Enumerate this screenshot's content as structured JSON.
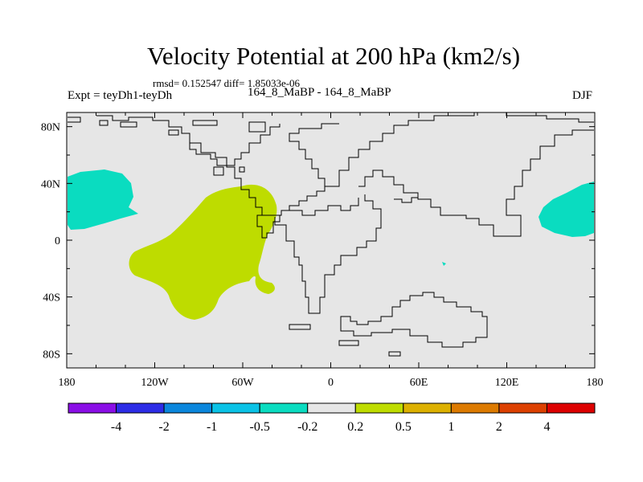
{
  "header": {
    "title": "Velocity Potential at 200 hPa (km2/s)",
    "stats": "rmsd= 0.152547 diff= 1.85033e-06",
    "expt": "Expt = teyDh1-teyDh",
    "subtitle": "164_8_MaBP - 164_8_MaBP",
    "season": "DJF"
  },
  "map": {
    "lon_labels": [
      "180",
      "120W",
      "60W",
      "0",
      "60E",
      "120E",
      "180"
    ],
    "lat_labels": [
      "80N",
      "40N",
      "0",
      "40S",
      "80S"
    ]
  },
  "colorbar": {
    "colors": [
      "#8a0ee6",
      "#2c2ce6",
      "#0a86dc",
      "#0ac2e6",
      "#0adcc0",
      "#e6e6e6",
      "#bedc00",
      "#dcb000",
      "#dc7a00",
      "#dc4000",
      "#dc0000"
    ],
    "labels": [
      "-4",
      "-2",
      "-1",
      "-0.5",
      "-0.2",
      "0.2",
      "0.5",
      "1",
      "2",
      "4"
    ]
  },
  "colors": {
    "background": "#e6e6e6",
    "negative_fill": "#0adcc0",
    "positive_fill": "#bedc00"
  }
}
